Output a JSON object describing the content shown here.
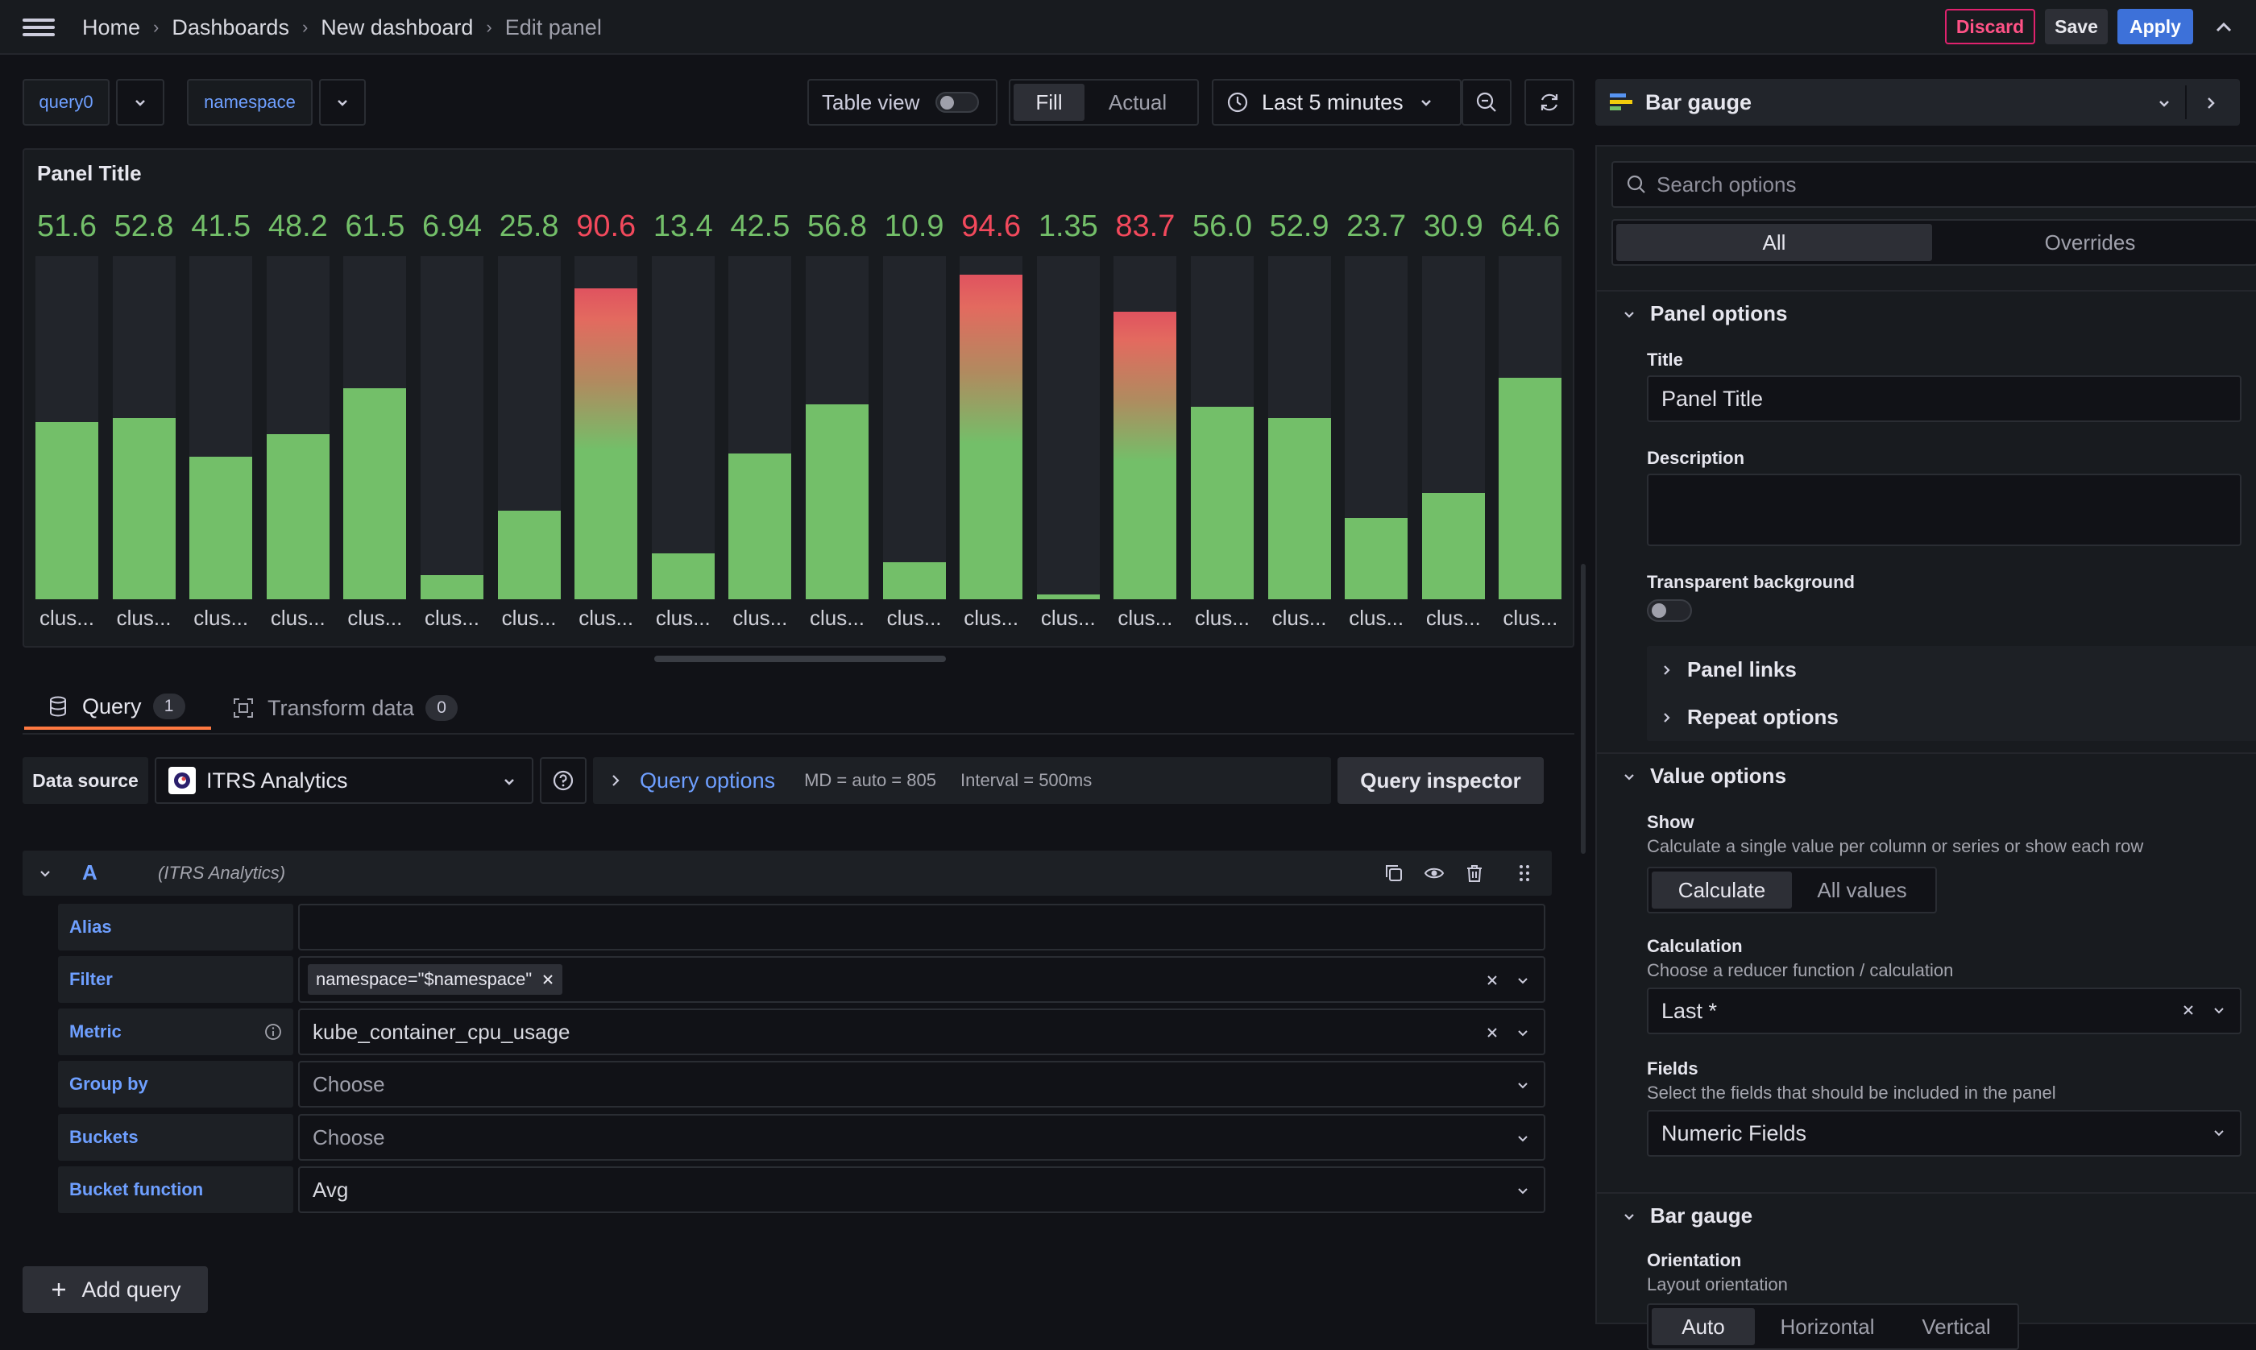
{
  "topbar": {
    "breadcrumbs": [
      "Home",
      "Dashboards",
      "New dashboard",
      "Edit panel"
    ],
    "discard": "Discard",
    "save": "Save",
    "apply": "Apply"
  },
  "toolbar": {
    "variables": [
      {
        "label": "query0"
      },
      {
        "label": "namespace"
      }
    ],
    "table_view": "Table view",
    "table_view_on": false,
    "fill": "Fill",
    "actual": "Actual",
    "time_range": "Last 5 minutes"
  },
  "panel": {
    "title": "Panel Title",
    "gauges": [
      {
        "value": 51.6,
        "display": "51.6",
        "label": "clus..."
      },
      {
        "value": 52.8,
        "display": "52.8",
        "label": "clus..."
      },
      {
        "value": 41.5,
        "display": "41.5",
        "label": "clus..."
      },
      {
        "value": 48.2,
        "display": "48.2",
        "label": "clus..."
      },
      {
        "value": 61.5,
        "display": "61.5",
        "label": "clus..."
      },
      {
        "value": 6.94,
        "display": "6.94",
        "label": "clus..."
      },
      {
        "value": 25.8,
        "display": "25.8",
        "label": "clus..."
      },
      {
        "value": 90.6,
        "display": "90.6",
        "label": "clus..."
      },
      {
        "value": 13.4,
        "display": "13.4",
        "label": "clus..."
      },
      {
        "value": 42.5,
        "display": "42.5",
        "label": "clus..."
      },
      {
        "value": 56.8,
        "display": "56.8",
        "label": "clus..."
      },
      {
        "value": 10.9,
        "display": "10.9",
        "label": "clus..."
      },
      {
        "value": 94.6,
        "display": "94.6",
        "label": "clus..."
      },
      {
        "value": 1.35,
        "display": "1.35",
        "label": "clus..."
      },
      {
        "value": 83.7,
        "display": "83.7",
        "label": "clus..."
      },
      {
        "value": 56.0,
        "display": "56.0",
        "label": "clus..."
      },
      {
        "value": 52.9,
        "display": "52.9",
        "label": "clus..."
      },
      {
        "value": 23.7,
        "display": "23.7",
        "label": "clus..."
      },
      {
        "value": 30.9,
        "display": "30.9",
        "label": "clus..."
      },
      {
        "value": 64.6,
        "display": "64.6",
        "label": "clus..."
      }
    ],
    "max": 100,
    "threshold_red": 80,
    "colors": {
      "ok": "#73bf69",
      "red": "#f2495c"
    }
  },
  "tabs": [
    {
      "label": "Query",
      "count": "1"
    },
    {
      "label": "Transform data",
      "count": "0"
    }
  ],
  "query": {
    "datasource_label": "Data source",
    "datasource": "ITRS Analytics",
    "query_options": "Query options",
    "md": "MD = auto = 805",
    "interval": "Interval = 500ms",
    "inspector": "Query inspector",
    "ref_id": "A",
    "ref_source": "(ITRS Analytics)",
    "rows": {
      "alias": {
        "label": "Alias",
        "value": ""
      },
      "filter": {
        "label": "Filter",
        "tag": "namespace=\"$namespace\""
      },
      "metric": {
        "label": "Metric",
        "value": "kube_container_cpu_usage"
      },
      "group_by": {
        "label": "Group by",
        "placeholder": "Choose"
      },
      "buckets": {
        "label": "Buckets",
        "placeholder": "Choose"
      },
      "bucket_function": {
        "label": "Bucket function",
        "value": "Avg"
      }
    },
    "add_query": "Add query"
  },
  "options": {
    "viz": "Bar gauge",
    "search_placeholder": "Search options",
    "tab_all": "All",
    "tab_overrides": "Overrides",
    "panel_options": {
      "header": "Panel options",
      "title_label": "Title",
      "title_value": "Panel Title",
      "description_label": "Description",
      "transparent_label": "Transparent background",
      "panel_links": "Panel links",
      "repeat_options": "Repeat options"
    },
    "value_options": {
      "header": "Value options",
      "show_label": "Show",
      "show_desc": "Calculate a single value per column or series or show each row",
      "calculate": "Calculate",
      "all_values": "All values",
      "calc_label": "Calculation",
      "calc_desc": "Choose a reducer function / calculation",
      "calc_value": "Last *",
      "fields_label": "Fields",
      "fields_desc": "Select the fields that should be included in the panel",
      "fields_value": "Numeric Fields"
    },
    "bar_gauge": {
      "header": "Bar gauge",
      "orientation_label": "Orientation",
      "orientation_desc": "Layout orientation",
      "orient_auto": "Auto",
      "orient_horizontal": "Horizontal",
      "orient_vertical": "Vertical"
    }
  }
}
